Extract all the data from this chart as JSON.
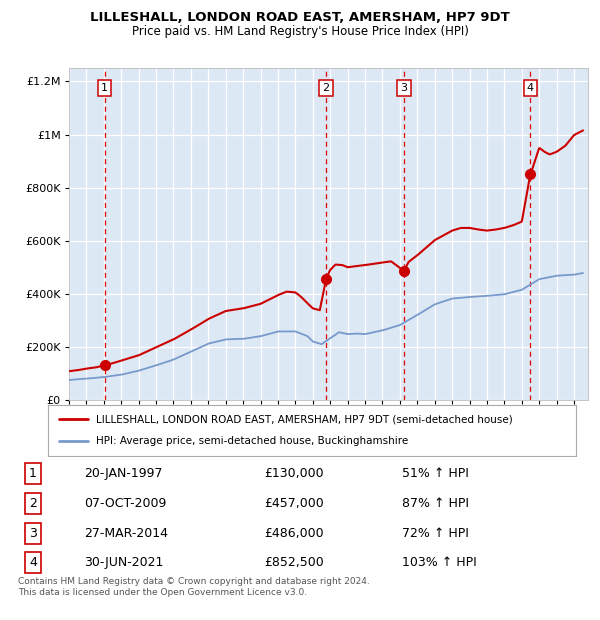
{
  "title1": "LILLESHALL, LONDON ROAD EAST, AMERSHAM, HP7 9DT",
  "title2": "Price paid vs. HM Land Registry's House Price Index (HPI)",
  "legend_red": "LILLESHALL, LONDON ROAD EAST, AMERSHAM, HP7 9DT (semi-detached house)",
  "legend_blue": "HPI: Average price, semi-detached house, Buckinghamshire",
  "footer1": "Contains HM Land Registry data © Crown copyright and database right 2024.",
  "footer2": "This data is licensed under the Open Government Licence v3.0.",
  "sales": [
    {
      "num": 1,
      "date_float": 1997.055,
      "price": 130000,
      "pct": "51% ↑ HPI",
      "date_str": "20-JAN-1997",
      "price_str": "£130,000"
    },
    {
      "num": 2,
      "date_float": 2009.765,
      "price": 457000,
      "pct": "87% ↑ HPI",
      "date_str": "07-OCT-2009",
      "price_str": "£457,000"
    },
    {
      "num": 3,
      "date_float": 2014.23,
      "price": 486000,
      "pct": "72% ↑ HPI",
      "date_str": "27-MAR-2014",
      "price_str": "£486,000"
    },
    {
      "num": 4,
      "date_float": 2021.495,
      "price": 852500,
      "pct": "103% ↑ HPI",
      "date_str": "30-JUN-2021",
      "price_str": "£852,500"
    }
  ],
  "hpi_pts": [
    [
      1995.0,
      75000
    ],
    [
      1996.0,
      80000
    ],
    [
      1997.0,
      86000
    ],
    [
      1998.0,
      95000
    ],
    [
      1999.0,
      110000
    ],
    [
      2000.0,
      130000
    ],
    [
      2001.0,
      152000
    ],
    [
      2002.0,
      182000
    ],
    [
      2003.0,
      212000
    ],
    [
      2004.0,
      228000
    ],
    [
      2005.0,
      230000
    ],
    [
      2006.0,
      240000
    ],
    [
      2007.0,
      258000
    ],
    [
      2008.0,
      258000
    ],
    [
      2008.7,
      240000
    ],
    [
      2009.0,
      220000
    ],
    [
      2009.5,
      210000
    ],
    [
      2010.0,
      232000
    ],
    [
      2010.5,
      255000
    ],
    [
      2011.0,
      248000
    ],
    [
      2011.5,
      250000
    ],
    [
      2012.0,
      248000
    ],
    [
      2013.0,
      262000
    ],
    [
      2014.0,
      282000
    ],
    [
      2015.0,
      320000
    ],
    [
      2016.0,
      360000
    ],
    [
      2017.0,
      382000
    ],
    [
      2018.0,
      388000
    ],
    [
      2019.0,
      392000
    ],
    [
      2020.0,
      398000
    ],
    [
      2021.0,
      415000
    ],
    [
      2022.0,
      455000
    ],
    [
      2023.0,
      468000
    ],
    [
      2024.0,
      472000
    ],
    [
      2024.5,
      478000
    ]
  ],
  "red_pts": [
    [
      1995.0,
      108000
    ],
    [
      1995.5,
      112000
    ],
    [
      1996.0,
      118000
    ],
    [
      1996.5,
      122000
    ],
    [
      1997.055,
      130000
    ],
    [
      1997.5,
      138000
    ],
    [
      1998.0,
      148000
    ],
    [
      1999.0,
      168000
    ],
    [
      2000.0,
      198000
    ],
    [
      2001.0,
      228000
    ],
    [
      2002.0,
      265000
    ],
    [
      2003.0,
      305000
    ],
    [
      2004.0,
      335000
    ],
    [
      2005.0,
      345000
    ],
    [
      2006.0,
      362000
    ],
    [
      2007.0,
      395000
    ],
    [
      2007.5,
      408000
    ],
    [
      2008.0,
      405000
    ],
    [
      2008.3,
      390000
    ],
    [
      2008.6,
      370000
    ],
    [
      2009.0,
      345000
    ],
    [
      2009.4,
      338000
    ],
    [
      2009.765,
      457000
    ],
    [
      2010.0,
      490000
    ],
    [
      2010.3,
      510000
    ],
    [
      2010.7,
      508000
    ],
    [
      2011.0,
      500000
    ],
    [
      2012.0,
      508000
    ],
    [
      2013.0,
      518000
    ],
    [
      2013.5,
      522000
    ],
    [
      2014.23,
      486000
    ],
    [
      2014.5,
      520000
    ],
    [
      2015.0,
      545000
    ],
    [
      2016.0,
      602000
    ],
    [
      2017.0,
      638000
    ],
    [
      2017.5,
      648000
    ],
    [
      2018.0,
      648000
    ],
    [
      2018.5,
      642000
    ],
    [
      2019.0,
      638000
    ],
    [
      2019.5,
      642000
    ],
    [
      2020.0,
      648000
    ],
    [
      2020.5,
      658000
    ],
    [
      2021.0,
      672000
    ],
    [
      2021.495,
      852500
    ],
    [
      2021.6,
      870000
    ],
    [
      2022.0,
      950000
    ],
    [
      2022.3,
      935000
    ],
    [
      2022.6,
      925000
    ],
    [
      2023.0,
      935000
    ],
    [
      2023.5,
      958000
    ],
    [
      2024.0,
      998000
    ],
    [
      2024.5,
      1015000
    ]
  ],
  "plot_bg": "#dde8f5",
  "red_line_color": "#cc0000",
  "blue_line_color": "#7799cc",
  "dashed_color": "#dd0000",
  "xlim": [
    1995,
    2024.8
  ],
  "ylim": [
    0,
    1250000
  ]
}
